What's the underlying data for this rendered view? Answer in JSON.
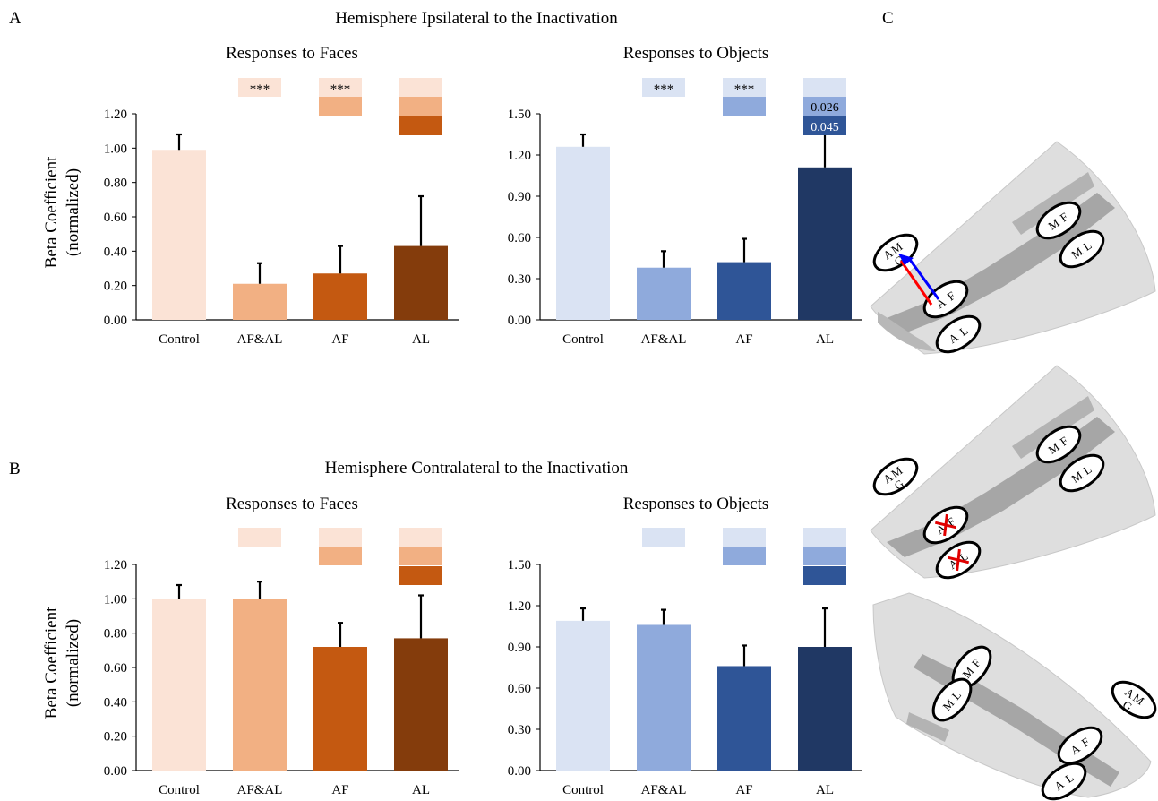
{
  "panel_letters": {
    "a": "A",
    "b": "B",
    "c": "C"
  },
  "rows": [
    {
      "title": "Hemisphere Ipsilateral to the Inactivation"
    },
    {
      "title": "Hemisphere Contralateral to the Inactivation"
    }
  ],
  "ylabel_line1": "Beta Coefficient",
  "ylabel_line2": "(normalized)",
  "colors": {
    "faces": [
      "#fbe3d6",
      "#f2b083",
      "#c45911",
      "#843c0c"
    ],
    "objects": [
      "#dae3f3",
      "#8faadc",
      "#2f5597",
      "#203864"
    ]
  },
  "chart_data": [
    {
      "type": "bar",
      "row": 0,
      "palette": "faces",
      "title": "Responses to Faces",
      "categories": [
        "Control",
        "AF&AL",
        "AF",
        "AL"
      ],
      "values": [
        0.99,
        0.21,
        0.27,
        0.43
      ],
      "errors": [
        0.09,
        0.12,
        0.16,
        0.29
      ],
      "ylim": [
        0,
        1.2
      ],
      "yticks": [
        "0.00",
        "0.20",
        "0.40",
        "0.60",
        "0.80",
        "1.00",
        "1.20"
      ],
      "sig_rows": [
        [
          {
            "color": 0,
            "text": "***"
          }
        ],
        [
          {
            "color": 0,
            "text": "***"
          },
          {
            "color": 1,
            "text": ""
          }
        ],
        [
          {
            "color": 0,
            "text": ""
          },
          {
            "color": 1,
            "text": ""
          },
          {
            "color": 2,
            "text": ""
          }
        ]
      ]
    },
    {
      "type": "bar",
      "row": 0,
      "palette": "objects",
      "title": "Responses to Objects",
      "categories": [
        "Control",
        "AF&AL",
        "AF",
        "AL"
      ],
      "values": [
        1.26,
        0.38,
        0.42,
        1.11
      ],
      "errors": [
        0.09,
        0.12,
        0.17,
        0.25
      ],
      "ylim": [
        0,
        1.5
      ],
      "yticks": [
        "0.00",
        "0.30",
        "0.60",
        "0.90",
        "1.20",
        "1.50"
      ],
      "sig_rows": [
        [
          {
            "color": 0,
            "text": "***"
          }
        ],
        [
          {
            "color": 0,
            "text": "***"
          },
          {
            "color": 1,
            "text": ""
          }
        ],
        [
          {
            "color": 0,
            "text": ""
          },
          {
            "color": 1,
            "text": "0.026"
          },
          {
            "color": 2,
            "text": "0.045"
          }
        ]
      ]
    },
    {
      "type": "bar",
      "row": 1,
      "palette": "faces",
      "title": "Responses to Faces",
      "categories": [
        "Control",
        "AF&AL",
        "AF",
        "AL"
      ],
      "values": [
        1.0,
        1.0,
        0.72,
        0.77
      ],
      "errors": [
        0.08,
        0.1,
        0.14,
        0.25
      ],
      "ylim": [
        0,
        1.2
      ],
      "yticks": [
        "0.00",
        "0.20",
        "0.40",
        "0.60",
        "0.80",
        "1.00",
        "1.20"
      ],
      "sig_rows": [
        [
          {
            "color": 0,
            "text": ""
          }
        ],
        [
          {
            "color": 0,
            "text": ""
          },
          {
            "color": 1,
            "text": ""
          }
        ],
        [
          {
            "color": 0,
            "text": ""
          },
          {
            "color": 1,
            "text": ""
          },
          {
            "color": 2,
            "text": ""
          }
        ]
      ]
    },
    {
      "type": "bar",
      "row": 1,
      "palette": "objects",
      "title": "Responses to Objects",
      "categories": [
        "Control",
        "AF&AL",
        "AF",
        "AL"
      ],
      "values": [
        1.09,
        1.06,
        0.76,
        0.9
      ],
      "errors": [
        0.09,
        0.11,
        0.15,
        0.28
      ],
      "ylim": [
        0,
        1.5
      ],
      "yticks": [
        "0.00",
        "0.30",
        "0.60",
        "0.90",
        "1.20",
        "1.50"
      ],
      "sig_rows": [
        [
          {
            "color": 0,
            "text": ""
          }
        ],
        [
          {
            "color": 0,
            "text": ""
          },
          {
            "color": 1,
            "text": ""
          }
        ],
        [
          {
            "color": 0,
            "text": ""
          },
          {
            "color": 1,
            "text": ""
          },
          {
            "color": 2,
            "text": ""
          }
        ]
      ]
    }
  ],
  "brain": {
    "patch_labels": [
      "AMG",
      "MF",
      "ML",
      "AF",
      "AL"
    ],
    "patch_color": "#ffffff",
    "cortex_color": "#dedede",
    "sulcus_color": "#a6a6a6",
    "arrow_colors": [
      "#ff0000",
      "#0000ff"
    ],
    "inactivation_mark_color": "#e00000"
  }
}
